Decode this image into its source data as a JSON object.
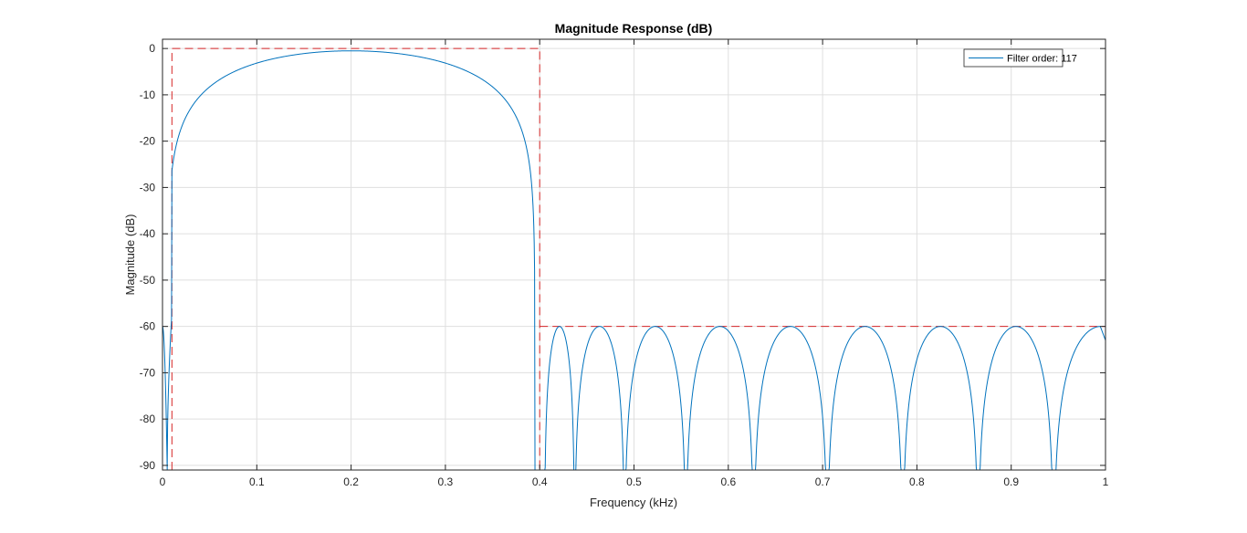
{
  "chart_data": {
    "type": "line",
    "title": "Magnitude Response (dB)",
    "xlabel": "Frequency (kHz)",
    "ylabel": "Magnitude (dB)",
    "xlim": [
      0,
      1.0
    ],
    "ylim": [
      -91,
      2
    ],
    "xticks": [
      0,
      0.1,
      0.2,
      0.3,
      0.4,
      0.5,
      0.6,
      0.7,
      0.8,
      0.9,
      1
    ],
    "xtick_labels": [
      "0",
      "0.1",
      "0.2",
      "0.3",
      "0.4",
      "0.5",
      "0.6",
      "0.7",
      "0.8",
      "0.9",
      "1"
    ],
    "yticks": [
      0,
      -10,
      -20,
      -30,
      -40,
      -50,
      -60,
      -70,
      -80,
      -90
    ],
    "ytick_labels": [
      "0",
      "-10",
      "-20",
      "-30",
      "-40",
      "-50",
      "-60",
      "-70",
      "-80",
      "-90"
    ],
    "grid": true,
    "legend_position": "top-right",
    "series": [
      {
        "name": "Filter order: 117",
        "color": "#0072bd",
        "passband": {
          "f_low": 0.01,
          "f_high": 0.4,
          "peak_freq": 0.2,
          "peak_db": -0.5
        },
        "stopband_peaks_freq": [
          0.42,
          0.46,
          0.52,
          0.59,
          0.665,
          0.745,
          0.825,
          0.905,
          0.985
        ],
        "stopband_peak_db": -60,
        "nulls_freq": [
          0.005,
          0.405,
          0.437,
          0.49,
          0.555,
          0.627,
          0.705,
          0.785,
          0.865,
          0.945
        ],
        "edge_db": {
          "f0": -60,
          "f1": -63
        }
      }
    ],
    "mask": {
      "color": "#d62728",
      "style": "dashed",
      "passband": {
        "f_low": 0.01,
        "f_high": 0.4,
        "upper_db": 0
      },
      "stopband": {
        "f_start": 0.4,
        "f_end": 1.0,
        "limit_db": -60
      }
    }
  }
}
